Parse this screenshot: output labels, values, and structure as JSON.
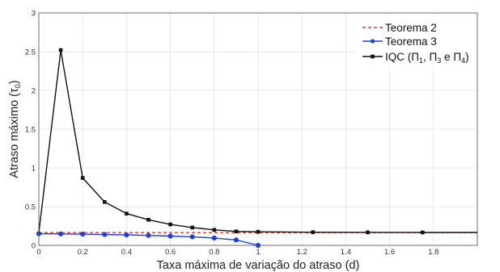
{
  "chart_data": {
    "type": "line",
    "xlabel": "Taxa máxima de variação do atraso (d)",
    "ylabel_main": "Atraso máximo (",
    "ylabel_symbol": "τ",
    "ylabel_sub": "0",
    "ylabel_close": ")",
    "xlim": [
      0,
      2
    ],
    "ylim": [
      0,
      3
    ],
    "x_ticks": [
      "0",
      "0.2",
      "0.4",
      "0.6",
      "0.8",
      "1",
      "1.2",
      "1.4",
      "1.6",
      "1.8"
    ],
    "x_tick_values": [
      0,
      0.2,
      0.4,
      0.6,
      0.8,
      1.0,
      1.2,
      1.4,
      1.6,
      1.8
    ],
    "y_ticks": [
      "0",
      "0.5",
      "1",
      "1.5",
      "2",
      "2.5",
      "3"
    ],
    "y_tick_values": [
      0,
      0.5,
      1,
      1.5,
      2,
      2.5,
      3
    ],
    "grid": true,
    "legend_position": "top-right",
    "series": [
      {
        "name": "Teorema 2",
        "color": "#e8382a",
        "style": "dashed",
        "marker": "none",
        "x": [
          0,
          1.0,
          2.0
        ],
        "y": [
          0.165,
          0.165,
          0.165
        ]
      },
      {
        "name": "Teorema 3",
        "color": "#1f3ee0",
        "style": "solid",
        "marker": "circle",
        "x": [
          0,
          0.1,
          0.2,
          0.3,
          0.4,
          0.5,
          0.6,
          0.7,
          0.8,
          0.9,
          1.0
        ],
        "y": [
          0.15,
          0.148,
          0.145,
          0.14,
          0.135,
          0.128,
          0.12,
          0.11,
          0.095,
          0.07,
          0.0
        ]
      },
      {
        "name_prefix": "IQC (",
        "name_p1": "Π",
        "name_p1_sub": "1",
        "name_sep1": ", ",
        "name_p2": "Π",
        "name_p2_sub": "3",
        "name_sep2": " e ",
        "name_p3": "Π",
        "name_p3_sub": "4",
        "name_suffix": ")",
        "color": "#111111",
        "style": "solid",
        "marker": "square",
        "x": [
          0,
          0.1,
          0.2,
          0.3,
          0.4,
          0.5,
          0.6,
          0.7,
          0.8,
          0.9,
          1.0,
          1.25,
          1.5,
          1.75,
          2.0
        ],
        "y": [
          0.165,
          2.52,
          0.87,
          0.56,
          0.41,
          0.33,
          0.27,
          0.23,
          0.2,
          0.18,
          0.175,
          0.17,
          0.168,
          0.167,
          0.167
        ],
        "markers_at": [
          0.1,
          0.2,
          0.3,
          0.4,
          0.5,
          0.6,
          0.7,
          0.8,
          0.9,
          1.0,
          1.25,
          1.5,
          1.75
        ]
      }
    ]
  }
}
